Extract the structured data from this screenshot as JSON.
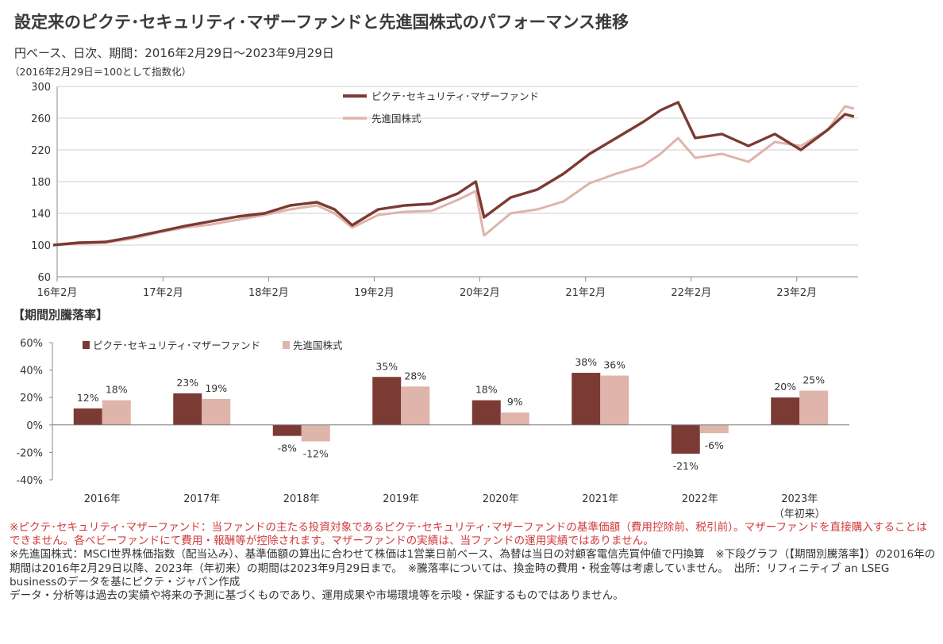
{
  "title": "設定来のピクテ･セキュリティ･マザーファンドと先進国株式のパフォーマンス推移",
  "subtitle": "円ベース、日次、期間：2016年2月29日～2023年9月29日",
  "index_note": "（2016年2月29日＝100として指数化）",
  "section_title": "【期間別騰落率】",
  "colors": {
    "fund": "#7b3a33",
    "index": "#dfb4aa",
    "grid": "#cfcfcf"
  },
  "chart_data": [
    {
      "type": "line",
      "title": "",
      "ylim": [
        60,
        300
      ],
      "yticks": [
        60,
        100,
        140,
        180,
        220,
        260,
        300
      ],
      "xticks": [
        "16年2月",
        "17年2月",
        "18年2月",
        "19年2月",
        "20年2月",
        "21年2月",
        "22年2月",
        "23年2月"
      ],
      "grid": true,
      "legend": "top-center",
      "x": [
        "2016-02",
        "2016-05",
        "2016-08",
        "2016-11",
        "2017-02",
        "2017-05",
        "2017-08",
        "2017-11",
        "2018-02",
        "2018-05",
        "2018-08",
        "2018-10",
        "2018-12",
        "2019-03",
        "2019-06",
        "2019-09",
        "2019-12",
        "2020-02",
        "2020-03",
        "2020-06",
        "2020-09",
        "2020-12",
        "2021-03",
        "2021-06",
        "2021-09",
        "2021-11",
        "2022-01",
        "2022-03",
        "2022-06",
        "2022-09",
        "2022-12",
        "2023-03",
        "2023-06",
        "2023-08",
        "2023-09"
      ],
      "series": [
        {
          "name": "ピクテ･セキュリティ･マザーファンド",
          "values": [
            100,
            103,
            104,
            110,
            117,
            124,
            130,
            136,
            140,
            150,
            154,
            145,
            125,
            145,
            150,
            152,
            165,
            180,
            135,
            160,
            170,
            190,
            215,
            235,
            255,
            270,
            280,
            235,
            240,
            225,
            240,
            220,
            245,
            265,
            262
          ]
        },
        {
          "name": "先進国株式",
          "values": [
            100,
            102,
            103,
            108,
            116,
            122,
            126,
            132,
            138,
            145,
            150,
            140,
            122,
            138,
            142,
            143,
            157,
            168,
            112,
            140,
            145,
            155,
            178,
            190,
            200,
            215,
            235,
            210,
            215,
            205,
            230,
            225,
            245,
            275,
            272
          ]
        }
      ]
    },
    {
      "type": "bar",
      "title": "",
      "ylim": [
        -40,
        60
      ],
      "yticks": [
        "-40%",
        "-20%",
        "0%",
        "20%",
        "40%",
        "60%"
      ],
      "legend": "top-left",
      "categories": [
        "2016年",
        "2017年",
        "2018年",
        "2019年",
        "2020年",
        "2021年",
        "2022年",
        "2023年"
      ],
      "category_note": "（年初来）",
      "series": [
        {
          "name": "ピクテ･セキュリティ･マザーファンド",
          "values": [
            12,
            23,
            -8,
            35,
            18,
            38,
            -21,
            20
          ],
          "labels": [
            "12%",
            "23%",
            "-8%",
            "35%",
            "18%",
            "38%",
            "-21%",
            "20%"
          ]
        },
        {
          "name": "先進国株式",
          "values": [
            18,
            19,
            -12,
            28,
            9,
            36,
            -6,
            25
          ],
          "labels": [
            "18%",
            "19%",
            "-12%",
            "28%",
            "9%",
            "36%",
            "-6%",
            "25%"
          ]
        }
      ]
    }
  ],
  "notes": {
    "red": "※ピクテ･セキュリティ･マザーファンド：当ファンドの主たる投資対象であるピクテ･セキュリティ･マザーファンドの基準価額（費用控除前、税引前）。マザーファンドを直接購入することはできません。各ベビーファンドにて費用・報酬等が控除されます。マザーファンドの実績は、当ファンドの運用実績ではありません。",
    "black": "※先進国株式：MSCI世界株価指数（配当込み）、基準価額の算出に合わせて株価は1営業日前ベース、為替は当日の対顧客電信売買仲値で円換算　※下段グラフ（【期間別騰落率】）の2016年の期間は2016年2月29日以降、2023年（年初来）の期間は2023年9月29日まで。　※騰落率については、換金時の費用・税金等は考慮していません。　出所：リフィニティブ an LSEG businessのデータを基にピクテ・ジャパン作成",
    "disclaimer": "データ・分析等は過去の実績や将来の予測に基づくものであり、運用成果や市場環境等を示唆・保証するものではありません。"
  }
}
